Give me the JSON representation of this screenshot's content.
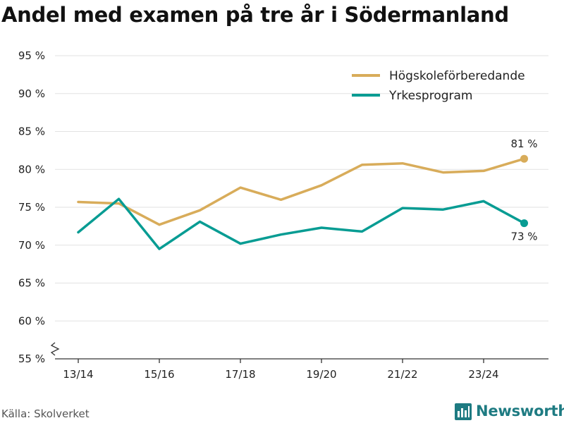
{
  "title": "Andel med examen på tre år i Södermanland",
  "source": "Källa: Skolverket",
  "brand": "Newsworthy",
  "colors": {
    "hogskole": "#d8ac5a",
    "yrkes": "#079c93",
    "grid": "#e2e2e2",
    "axis": "#333333",
    "brand": "#1e7b82"
  },
  "chart_data": {
    "type": "line",
    "title": "Andel med examen på tre år i Södermanland",
    "xlabel": "",
    "ylabel": "",
    "categories": [
      "13/14",
      "14/15",
      "15/16",
      "16/17",
      "17/18",
      "18/19",
      "19/20",
      "20/21",
      "21/22",
      "22/23",
      "23/24",
      "24/25"
    ],
    "x_tick_labels": [
      "13/14",
      "15/16",
      "17/18",
      "19/20",
      "21/22",
      "23/24"
    ],
    "x_tick_indices": [
      0,
      2,
      4,
      6,
      8,
      10
    ],
    "y_ticks": [
      55,
      60,
      65,
      70,
      75,
      80,
      85,
      90,
      95
    ],
    "y_tick_labels": [
      "55 %",
      "60 %",
      "65 %",
      "70 %",
      "75 %",
      "80 %",
      "85 %",
      "90 %",
      "95 %"
    ],
    "ylim": [
      55,
      96
    ],
    "axis_break": true,
    "legend_position": "top-right",
    "series": [
      {
        "name": "Högskoleförberedande",
        "color": "#d8ac5a",
        "values": [
          75.7,
          75.5,
          72.7,
          74.6,
          77.6,
          76.0,
          77.9,
          80.6,
          80.8,
          79.6,
          79.8,
          81.4
        ],
        "end_label": "81 %",
        "end_label_position": "above"
      },
      {
        "name": "Yrkesprogram",
        "color": "#079c93",
        "values": [
          71.7,
          76.1,
          69.5,
          73.1,
          70.2,
          71.4,
          72.3,
          71.8,
          74.9,
          74.7,
          75.8,
          72.9
        ],
        "end_label": "73 %",
        "end_label_position": "below"
      }
    ]
  }
}
